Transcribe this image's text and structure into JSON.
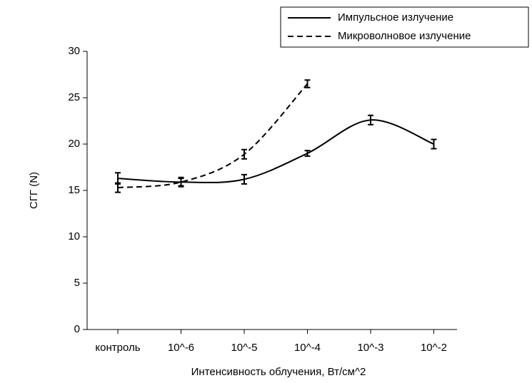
{
  "chart_data": {
    "type": "line",
    "x_label": "Интенсивность облучения, Вт/см^2",
    "y_label": "СГГ (N)",
    "categories": [
      "контроль",
      "10^-6",
      "10^-5",
      "10^-4",
      "10^-3",
      "10^-2"
    ],
    "series": [
      {
        "name": "Импульсное излучение",
        "color": "#000000",
        "dash": "solid",
        "values": [
          16.3,
          15.9,
          16.2,
          19.0,
          22.6,
          20.0
        ],
        "errors": [
          0.6,
          0.5,
          0.5,
          0.3,
          0.5,
          0.5
        ]
      },
      {
        "name": "Микроволновое излучение",
        "color": "#000000",
        "dash": "dashed",
        "values": [
          15.3,
          15.9,
          18.9,
          26.5,
          null,
          null
        ],
        "errors": [
          0.5,
          0.4,
          0.5,
          0.4,
          null,
          null
        ]
      }
    ],
    "ylim": [
      0,
      30
    ],
    "yticks": [
      0,
      5,
      10,
      15,
      20,
      25,
      30
    ],
    "grid": false,
    "legend": "upper right"
  }
}
